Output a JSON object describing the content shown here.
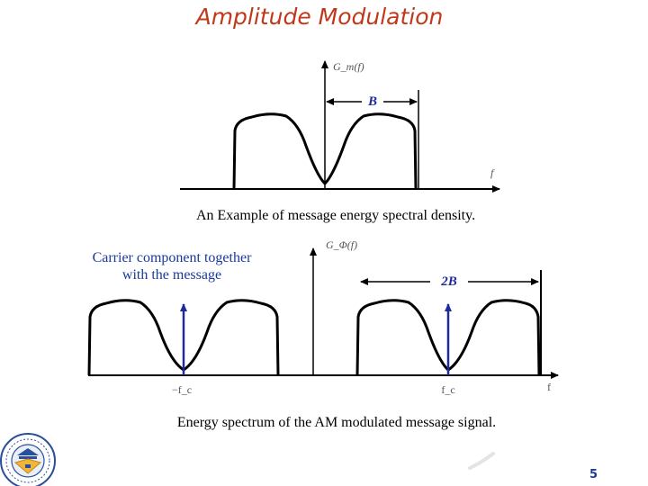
{
  "slide": {
    "title": "Amplitude Modulation",
    "page_number": "5"
  },
  "top_figure": {
    "y_label": "G_m(f)",
    "x_label": "f",
    "bandwidth_label": "B",
    "caption": "An Example of message energy spectral density."
  },
  "bottom_figure": {
    "y_label": "G_Φ(f)",
    "x_label": "f",
    "bandwidth_label": "2B",
    "left_carrier_label": "−f_c",
    "right_carrier_label": "f_c",
    "note_line1": "Carrier component together",
    "note_line2": "with the message",
    "caption": "Energy spectrum of the AM modulated message signal."
  },
  "colors": {
    "title": "#c0391b",
    "note": "#1a3a9a",
    "carrier_arrow": "#1f2a9c",
    "bandwidth_label": "#1f2a9c",
    "curve": "#000000"
  }
}
